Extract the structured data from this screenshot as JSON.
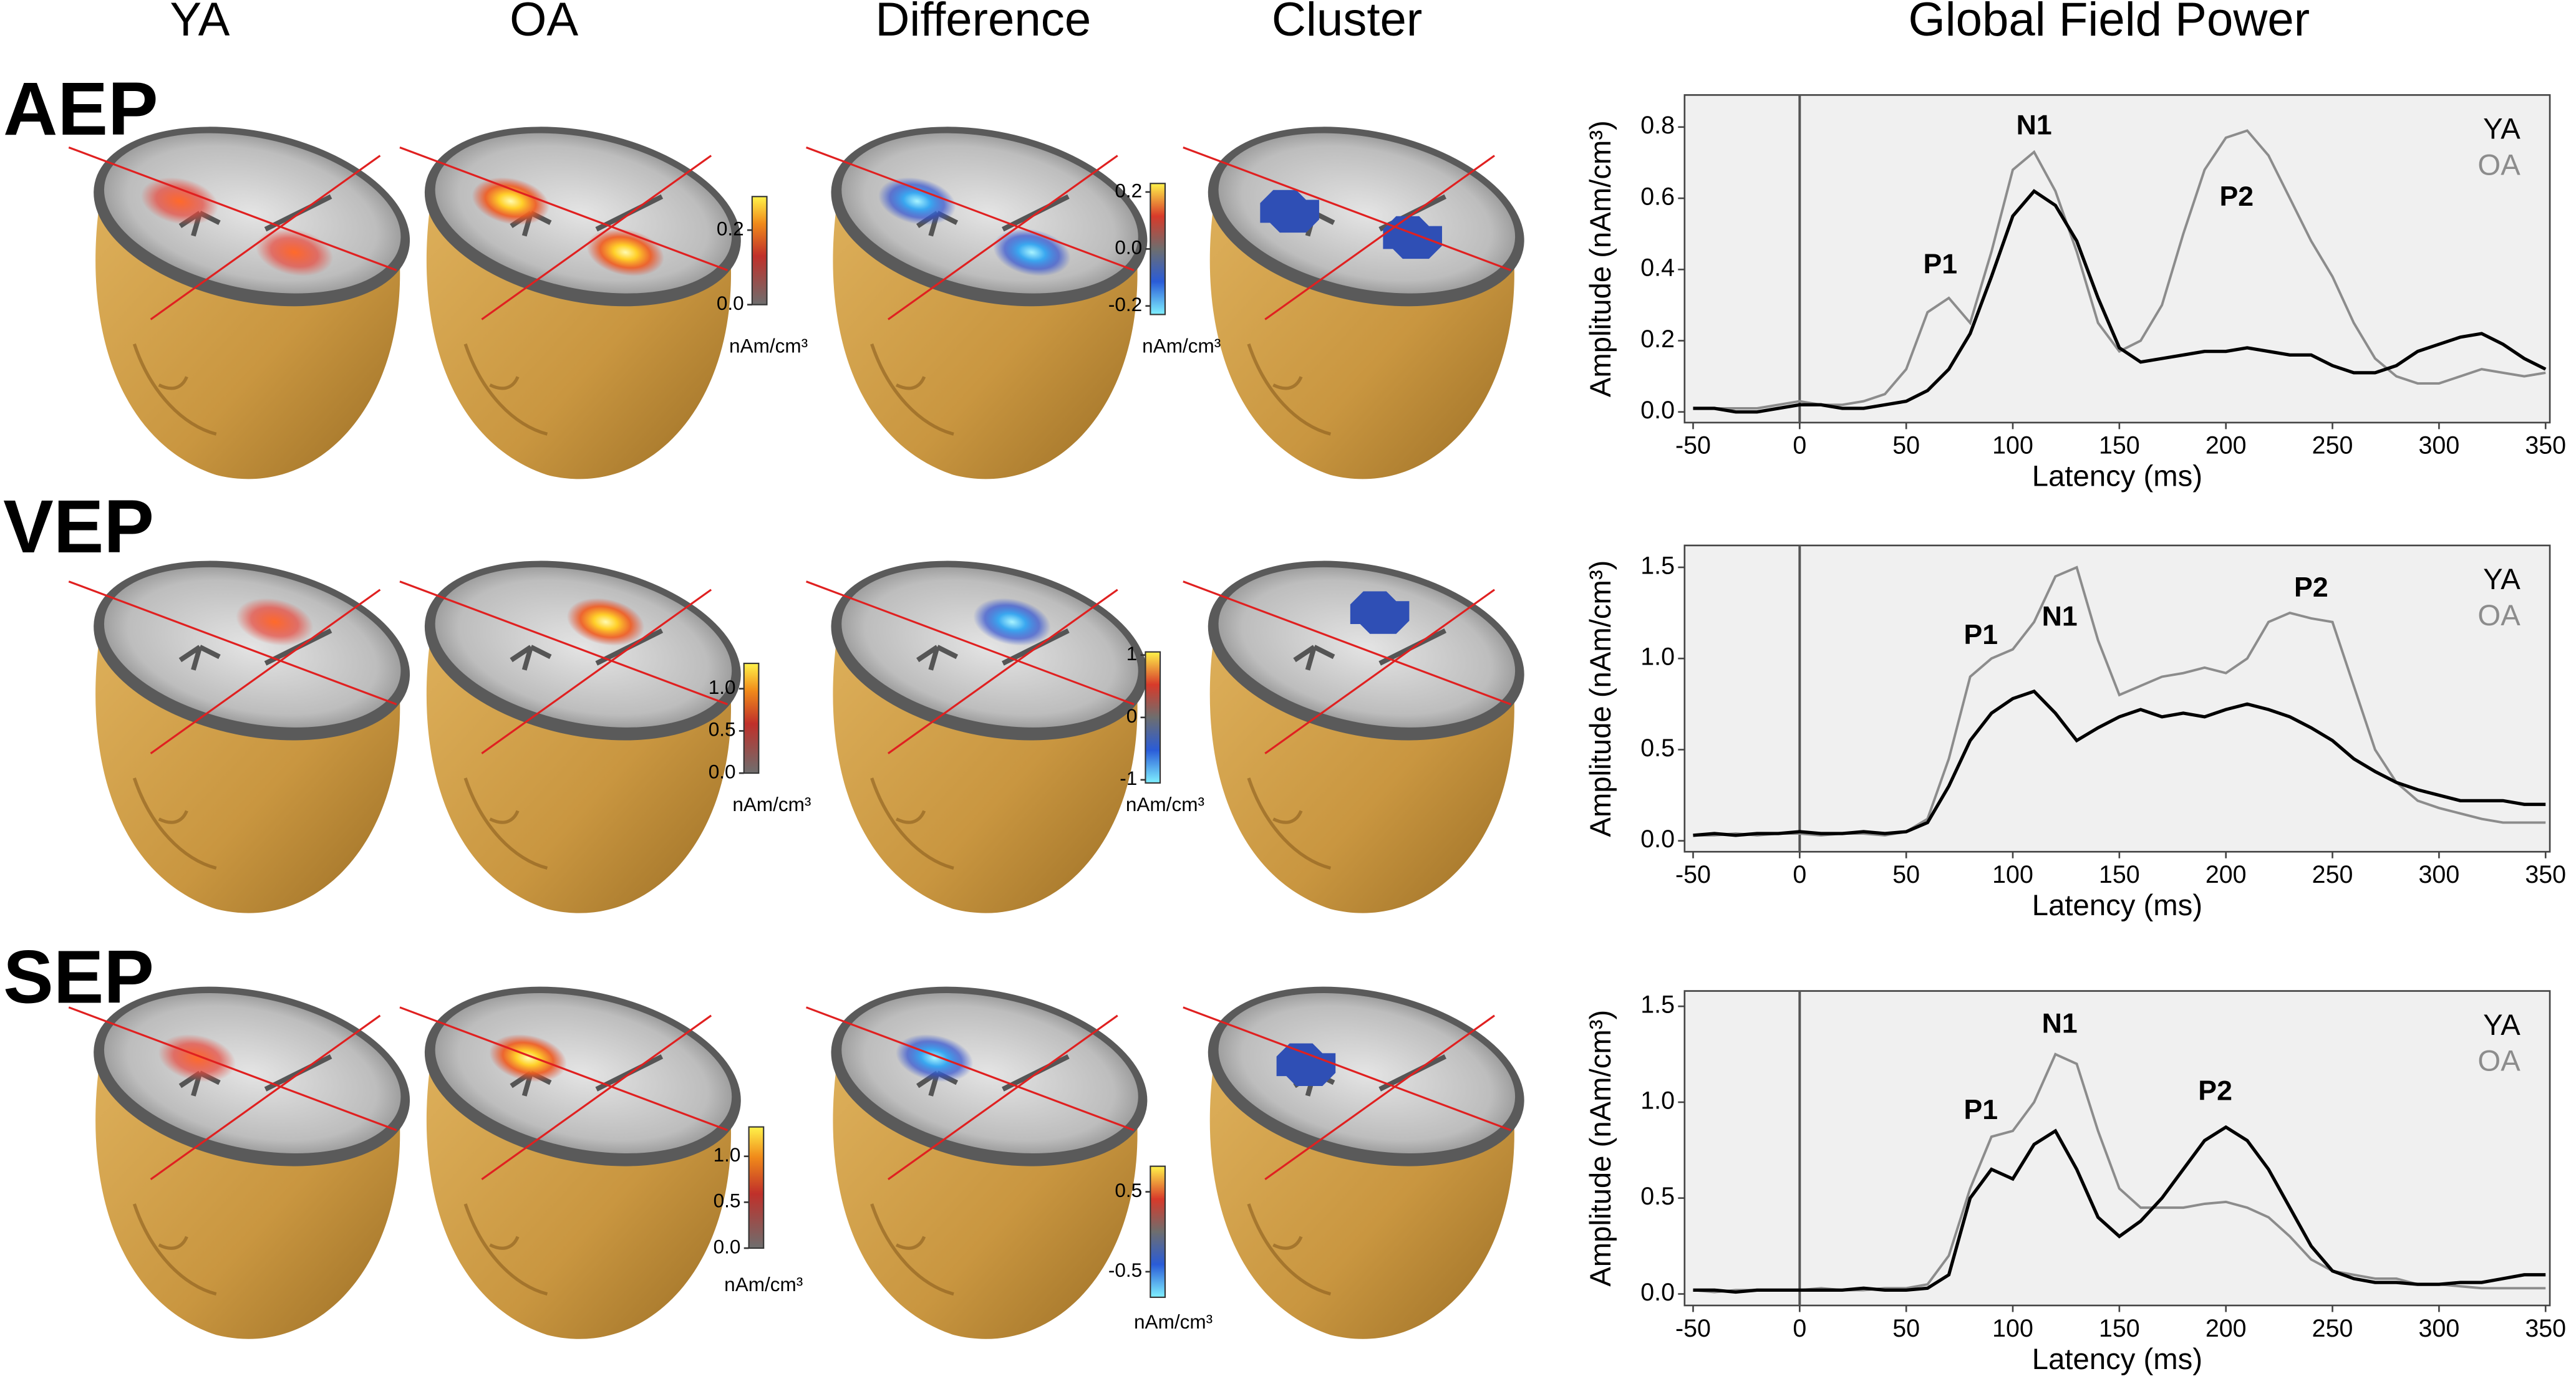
{
  "figure": {
    "column_headers": [
      "YA",
      "OA",
      "Difference",
      "Cluster",
      "Global Field Power"
    ],
    "row_labels": [
      "AEP",
      "VEP",
      "SEP"
    ],
    "colorbars": [
      {
        "colormap": "hot",
        "label": "nAm/cm³",
        "lim": [
          0,
          0.29
        ],
        "ticks": [
          {
            "value": 0,
            "label": "0.0"
          },
          0.2
        ]
      },
      {
        "colormap": "diverging",
        "label": "nAm/cm³",
        "lim": [
          -0.23,
          0.23
        ],
        "ticks": [
          0.2,
          {
            "value": 0,
            "label": "0.0"
          },
          -0.2
        ]
      },
      {
        "colormap": "hot",
        "label": "nAm/cm³",
        "lim": [
          0,
          1.3
        ],
        "ticks": [
          {
            "value": 0,
            "label": "0.0"
          },
          0.5,
          {
            "value": 1,
            "label": "1.0"
          }
        ]
      },
      {
        "colormap": "diverging",
        "label": "nAm/cm³",
        "lim": [
          -1.05,
          1.05
        ],
        "ticks": [
          1,
          0,
          -1
        ]
      },
      {
        "colormap": "hot",
        "label": "nAm/cm³",
        "lim": [
          0,
          1.32
        ],
        "ticks": [
          {
            "value": 0,
            "label": "0.0"
          },
          0.5,
          {
            "value": 1,
            "label": "1.0"
          }
        ]
      },
      {
        "colormap": "diverging",
        "label": "nAm/cm³",
        "lim": [
          -0.82,
          0.82
        ],
        "ticks": [
          0.5,
          -0.5
        ]
      }
    ]
  },
  "chart_data": [
    {
      "type": "line",
      "xlabel": "Latency (ms)",
      "ylabel": "Amplitude (nAm/cm³)",
      "legend": "upper right",
      "vline": 0,
      "x": [
        -50,
        -40,
        -30,
        -20,
        -10,
        0,
        10,
        20,
        30,
        40,
        50,
        60,
        70,
        80,
        90,
        100,
        110,
        120,
        130,
        140,
        150,
        160,
        170,
        180,
        190,
        200,
        210,
        220,
        230,
        240,
        250,
        260,
        270,
        280,
        290,
        300,
        310,
        320,
        330,
        340,
        350
      ],
      "xlim": [
        -54,
        352
      ],
      "xticks": [
        -50,
        0,
        50,
        100,
        150,
        200,
        250,
        300,
        350
      ],
      "ylim": [
        -0.03,
        0.89
      ],
      "yticks": [
        {
          "value": 0,
          "label": "0.0"
        },
        0.2,
        0.4,
        0.6,
        0.8
      ],
      "series": [
        {
          "name": "YA",
          "color": "#000000",
          "values": [
            0.01,
            0.01,
            0,
            0,
            0.01,
            0.02,
            0.02,
            0.01,
            0.01,
            0.02,
            0.03,
            0.06,
            0.12,
            0.22,
            0.38,
            0.55,
            0.62,
            0.58,
            0.48,
            0.32,
            0.18,
            0.14,
            0.15,
            0.16,
            0.17,
            0.17,
            0.18,
            0.17,
            0.16,
            0.16,
            0.13,
            0.11,
            0.11,
            0.13,
            0.17,
            0.19,
            0.21,
            0.22,
            0.19,
            0.15,
            0.12
          ]
        },
        {
          "name": "OA",
          "color": "#8c8c8c",
          "values": [
            0.01,
            0.01,
            0.01,
            0.01,
            0.02,
            0.03,
            0.02,
            0.02,
            0.03,
            0.05,
            0.12,
            0.28,
            0.32,
            0.25,
            0.45,
            0.68,
            0.73,
            0.62,
            0.45,
            0.25,
            0.17,
            0.2,
            0.3,
            0.5,
            0.68,
            0.77,
            0.79,
            0.72,
            0.6,
            0.48,
            0.38,
            0.25,
            0.15,
            0.1,
            0.08,
            0.08,
            0.1,
            0.12,
            0.11,
            0.1,
            0.11
          ]
        }
      ],
      "annotations": [
        "P1",
        "N1",
        "P2"
      ]
    },
    {
      "type": "line",
      "xlabel": "Latency (ms)",
      "ylabel": "Amplitude (nAm/cm³)",
      "legend": "upper right",
      "vline": 0,
      "x": [
        -50,
        -40,
        -30,
        -20,
        -10,
        0,
        10,
        20,
        30,
        40,
        50,
        60,
        70,
        80,
        90,
        100,
        110,
        120,
        130,
        140,
        150,
        160,
        170,
        180,
        190,
        200,
        210,
        220,
        230,
        240,
        250,
        260,
        270,
        280,
        290,
        300,
        310,
        320,
        330,
        340,
        350
      ],
      "xlim": [
        -54,
        352
      ],
      "xticks": [
        -50,
        0,
        50,
        100,
        150,
        200,
        250,
        300,
        350
      ],
      "ylim": [
        -0.06,
        1.62
      ],
      "yticks": [
        {
          "value": 0,
          "label": "0.0"
        },
        0.5,
        {
          "value": 1,
          "label": "1.0"
        },
        1.5
      ],
      "series": [
        {
          "name": "YA",
          "color": "#000000",
          "values": [
            0.03,
            0.04,
            0.03,
            0.04,
            0.04,
            0.05,
            0.04,
            0.04,
            0.05,
            0.04,
            0.05,
            0.1,
            0.3,
            0.55,
            0.7,
            0.78,
            0.82,
            0.7,
            0.55,
            0.62,
            0.68,
            0.72,
            0.68,
            0.7,
            0.68,
            0.72,
            0.75,
            0.72,
            0.68,
            0.62,
            0.55,
            0.45,
            0.38,
            0.32,
            0.28,
            0.25,
            0.22,
            0.22,
            0.22,
            0.2,
            0.2
          ]
        },
        {
          "name": "OA",
          "color": "#8c8c8c",
          "values": [
            0.03,
            0.03,
            0.04,
            0.03,
            0.04,
            0.04,
            0.03,
            0.04,
            0.04,
            0.03,
            0.05,
            0.12,
            0.45,
            0.9,
            1.0,
            1.05,
            1.2,
            1.45,
            1.5,
            1.1,
            0.8,
            0.85,
            0.9,
            0.92,
            0.95,
            0.92,
            1.0,
            1.2,
            1.25,
            1.22,
            1.2,
            0.85,
            0.5,
            0.32,
            0.22,
            0.18,
            0.15,
            0.12,
            0.1,
            0.1,
            0.1
          ]
        }
      ],
      "annotations": [
        "P1",
        "N1",
        "P2"
      ]
    },
    {
      "type": "line",
      "xlabel": "Latency (ms)",
      "ylabel": "Amplitude (nAm/cm³)",
      "legend": "upper right",
      "vline": 0,
      "x": [
        -50,
        -40,
        -30,
        -20,
        -10,
        0,
        10,
        20,
        30,
        40,
        50,
        60,
        70,
        80,
        90,
        100,
        110,
        120,
        130,
        140,
        150,
        160,
        170,
        180,
        190,
        200,
        210,
        220,
        230,
        240,
        250,
        260,
        270,
        280,
        290,
        300,
        310,
        320,
        330,
        340,
        350
      ],
      "xlim": [
        -54,
        352
      ],
      "xticks": [
        -50,
        0,
        50,
        100,
        150,
        200,
        250,
        300,
        350
      ],
      "ylim": [
        -0.06,
        1.58
      ],
      "yticks": [
        {
          "value": 0,
          "label": "0.0"
        },
        0.5,
        {
          "value": 1,
          "label": "1.0"
        },
        1.5
      ],
      "series": [
        {
          "name": "YA",
          "color": "#000000",
          "values": [
            0.02,
            0.02,
            0.01,
            0.02,
            0.02,
            0.02,
            0.02,
            0.02,
            0.03,
            0.02,
            0.02,
            0.03,
            0.1,
            0.5,
            0.65,
            0.6,
            0.78,
            0.85,
            0.65,
            0.4,
            0.3,
            0.38,
            0.5,
            0.65,
            0.8,
            0.87,
            0.8,
            0.65,
            0.45,
            0.25,
            0.12,
            0.08,
            0.06,
            0.06,
            0.05,
            0.05,
            0.06,
            0.06,
            0.08,
            0.1,
            0.1
          ]
        },
        {
          "name": "OA",
          "color": "#8c8c8c",
          "values": [
            0.02,
            0.01,
            0.02,
            0.02,
            0.02,
            0.02,
            0.03,
            0.02,
            0.02,
            0.03,
            0.03,
            0.05,
            0.2,
            0.55,
            0.82,
            0.85,
            1.0,
            1.25,
            1.2,
            0.85,
            0.55,
            0.45,
            0.45,
            0.45,
            0.47,
            0.48,
            0.45,
            0.4,
            0.3,
            0.18,
            0.12,
            0.1,
            0.08,
            0.08,
            0.05,
            0.05,
            0.04,
            0.03,
            0.03,
            0.03,
            0.03
          ]
        }
      ],
      "annotations": [
        "P1",
        "N1",
        "P2"
      ]
    }
  ]
}
